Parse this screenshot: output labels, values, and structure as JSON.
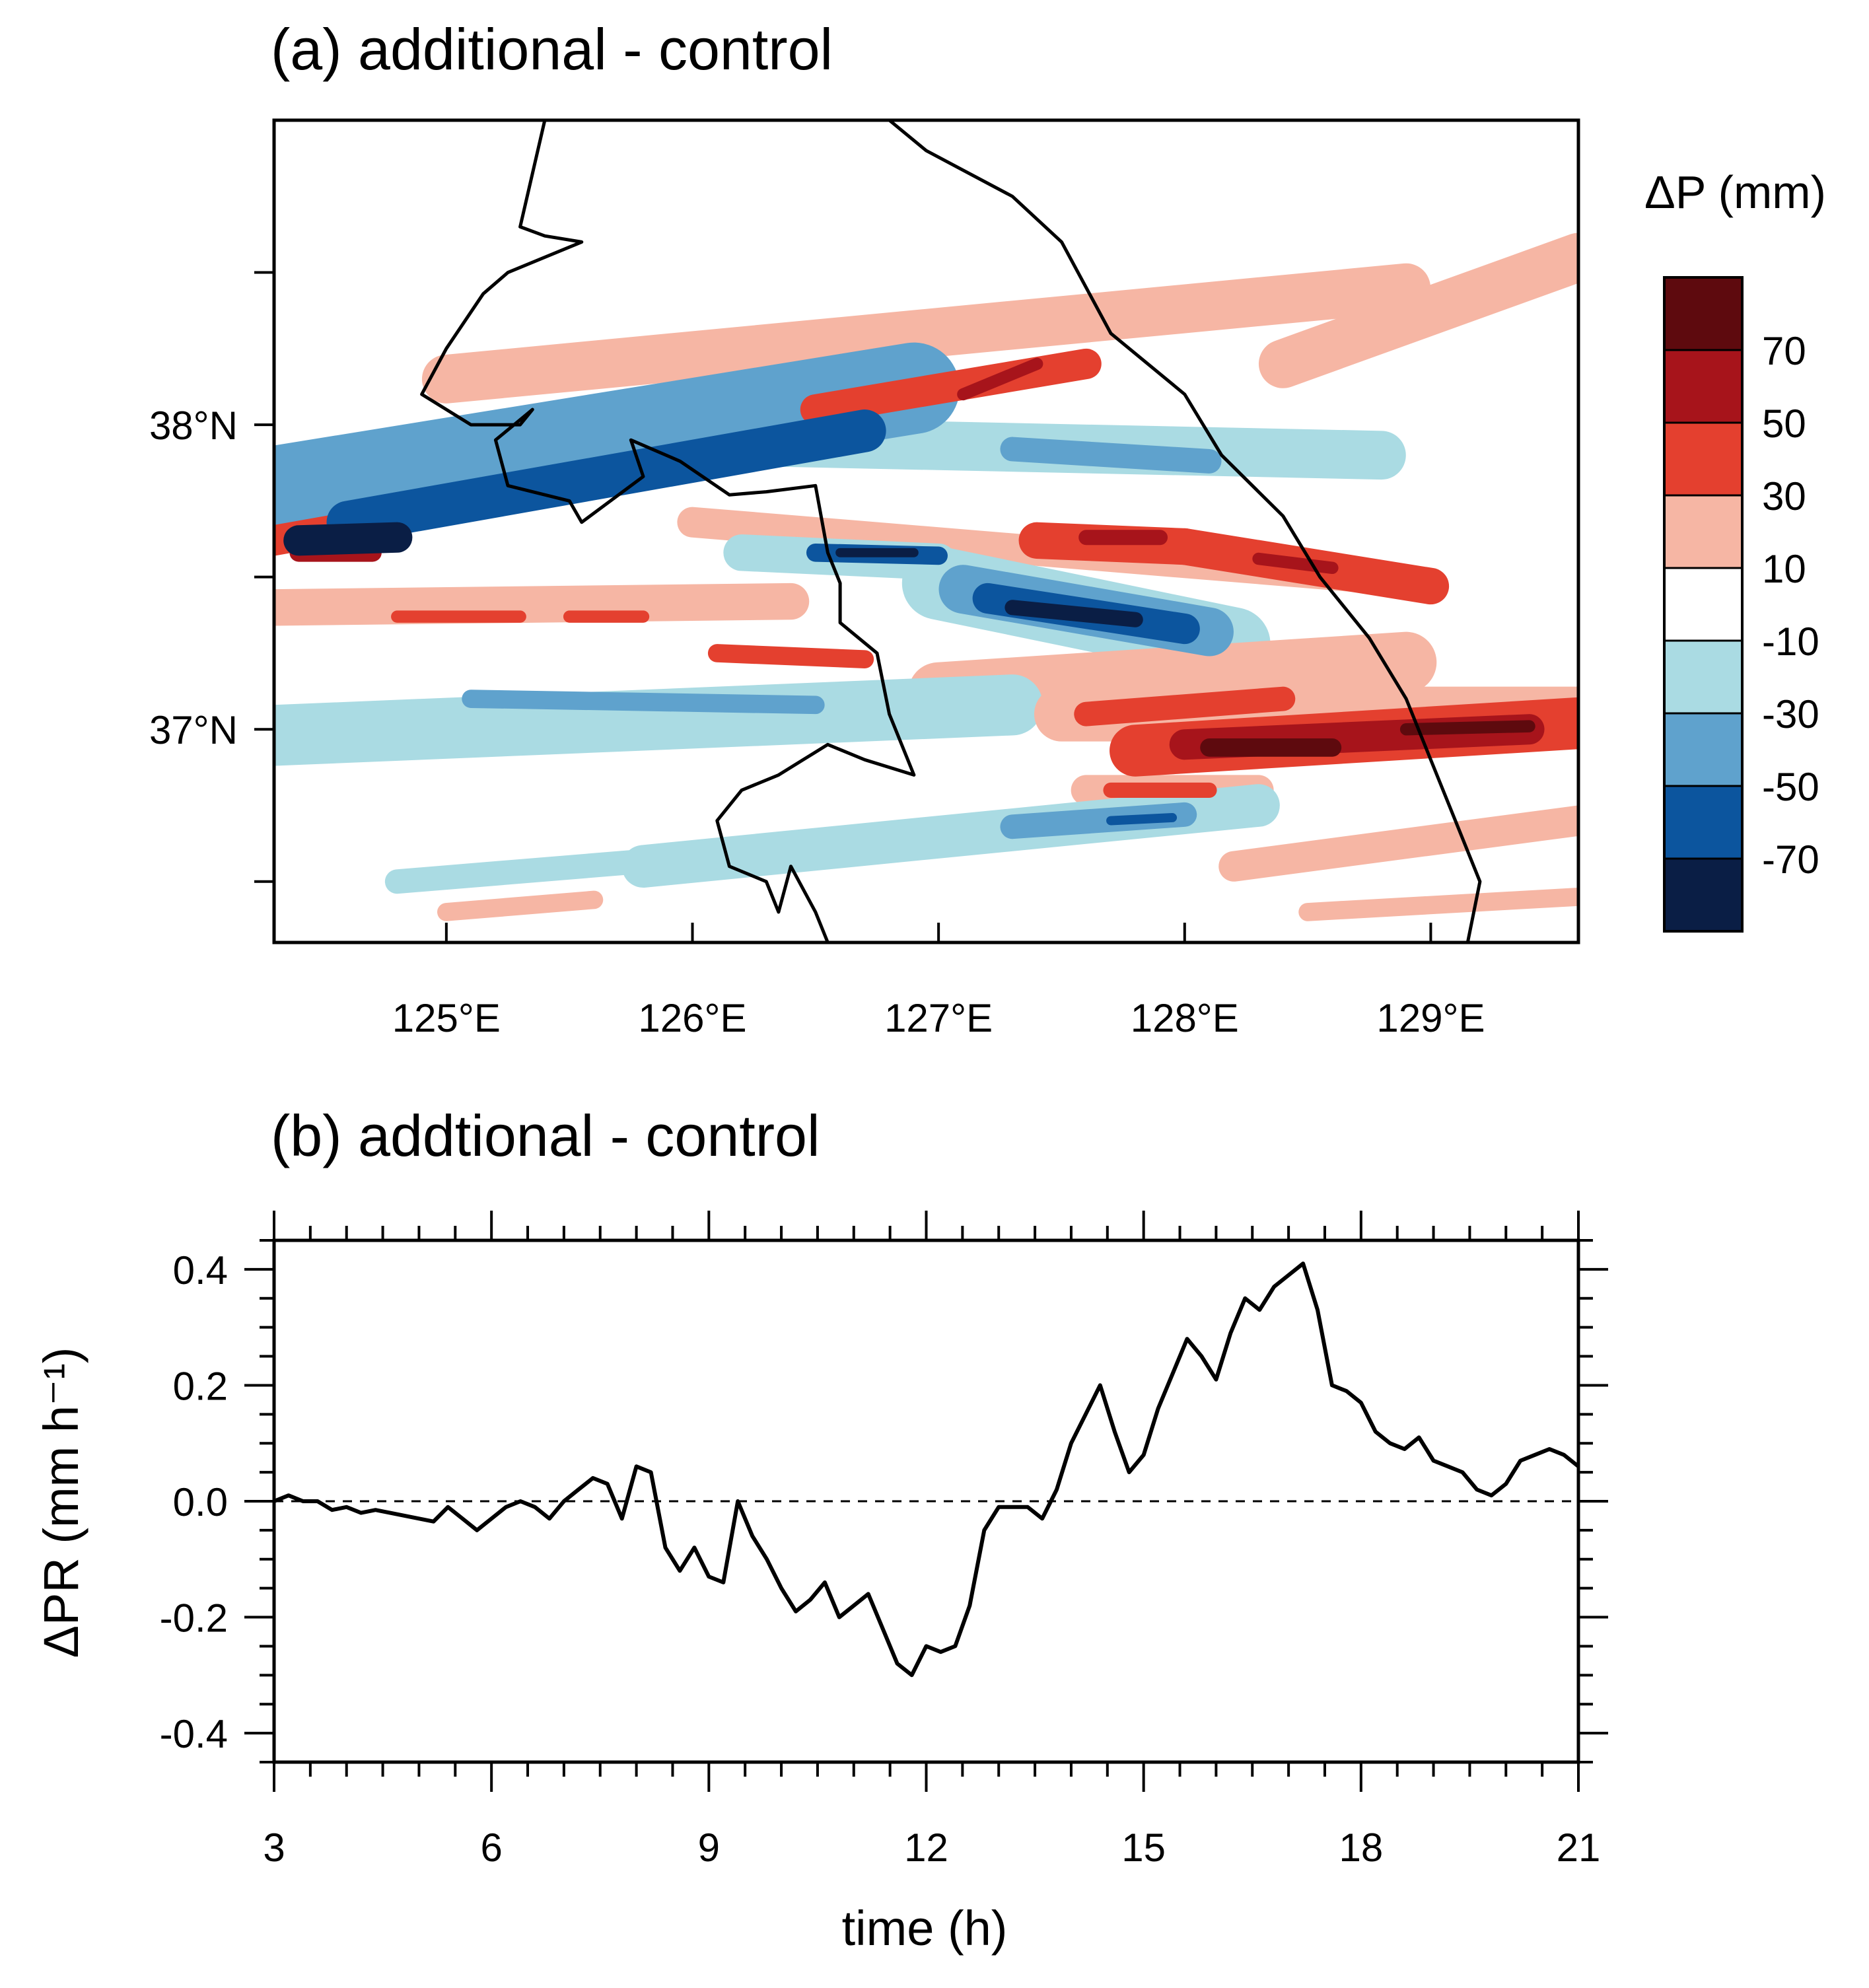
{
  "chart_data": [
    {
      "type": "heatmap",
      "panel": "a",
      "title": "(a) additional - control",
      "colorbar": {
        "title": "ΔP (mm)",
        "tick_labels": [
          "70",
          "50",
          "30",
          "10",
          "-10",
          "-30",
          "-50",
          "-70"
        ],
        "colors": [
          "#5e0a0e",
          "#a7141b",
          "#e4402f",
          "#f6b6a4",
          "#ffffff",
          "#aadbe3",
          "#5fa2cd",
          "#0c559e",
          "#0a1e45"
        ]
      },
      "x_tick_labels": [
        "125°E",
        "126°E",
        "127°E",
        "128°E",
        "129°E"
      ],
      "x_ticks": [
        125,
        126,
        127,
        128,
        129
      ],
      "y_tick_labels": [
        "38°N",
        "37°N"
      ],
      "y_ticks": [
        38,
        37
      ],
      "xlim": [
        124.3,
        129.6
      ],
      "ylim": [
        36.3,
        39.0
      ],
      "bands": [
        {
          "lon0": 124.3,
          "lat0": 37.78,
          "lon1": 126.9,
          "lat1": 38.12,
          "w": 0.15,
          "level": -2
        },
        {
          "lon0": 124.6,
          "lat0": 37.68,
          "lon1": 126.7,
          "lat1": 37.98,
          "w": 0.07,
          "level": -3
        },
        {
          "lon0": 124.3,
          "lat0": 37.62,
          "lon1": 126.6,
          "lat1": 37.95,
          "w": 0.05,
          "level": 2
        },
        {
          "lon0": 124.4,
          "lat0": 37.62,
          "lon1": 124.8,
          "lat1": 37.63,
          "w": 0.05,
          "level": -4
        },
        {
          "lon0": 124.4,
          "lat0": 37.58,
          "lon1": 124.7,
          "lat1": 37.58,
          "w": 0.03,
          "level": 3
        },
        {
          "lon0": 125.0,
          "lat0": 38.15,
          "lon1": 128.9,
          "lat1": 38.45,
          "w": 0.08,
          "level": 1
        },
        {
          "lon0": 126.5,
          "lat0": 38.05,
          "lon1": 127.6,
          "lat1": 38.2,
          "w": 0.05,
          "level": 2
        },
        {
          "lon0": 127.1,
          "lat0": 38.1,
          "lon1": 127.4,
          "lat1": 38.2,
          "w": 0.02,
          "level": 3
        },
        {
          "lon0": 125.9,
          "lat0": 37.95,
          "lon1": 128.8,
          "lat1": 37.9,
          "w": 0.08,
          "level": -1
        },
        {
          "lon0": 127.3,
          "lat0": 37.92,
          "lon1": 128.1,
          "lat1": 37.88,
          "w": 0.04,
          "level": -2
        },
        {
          "lon0": 128.4,
          "lat0": 38.2,
          "lon1": 129.6,
          "lat1": 38.55,
          "w": 0.08,
          "level": 1
        },
        {
          "lon0": 126.0,
          "lat0": 37.68,
          "lon1": 128.7,
          "lat1": 37.5,
          "w": 0.05,
          "level": 1
        },
        {
          "lon0": 127.4,
          "lat0": 37.62,
          "lon1": 128.0,
          "lat1": 37.6,
          "w": 0.06,
          "level": 2
        },
        {
          "lon0": 127.6,
          "lat0": 37.63,
          "lon1": 127.9,
          "lat1": 37.63,
          "w": 0.025,
          "level": 3
        },
        {
          "lon0": 128.0,
          "lat0": 37.6,
          "lon1": 129.0,
          "lat1": 37.47,
          "w": 0.06,
          "level": 2
        },
        {
          "lon0": 128.3,
          "lat0": 37.56,
          "lon1": 128.6,
          "lat1": 37.53,
          "w": 0.02,
          "level": 3
        },
        {
          "lon0": 126.2,
          "lat0": 37.58,
          "lon1": 127.0,
          "lat1": 37.55,
          "w": 0.06,
          "level": -1
        },
        {
          "lon0": 126.5,
          "lat0": 37.58,
          "lon1": 127.0,
          "lat1": 37.57,
          "w": 0.03,
          "level": -3
        },
        {
          "lon0": 126.6,
          "lat0": 37.58,
          "lon1": 126.9,
          "lat1": 37.58,
          "w": 0.015,
          "level": -4
        },
        {
          "lon0": 127.0,
          "lat0": 37.48,
          "lon1": 128.2,
          "lat1": 37.28,
          "w": 0.12,
          "level": -1
        },
        {
          "lon0": 127.1,
          "lat0": 37.46,
          "lon1": 128.1,
          "lat1": 37.32,
          "w": 0.08,
          "level": -2
        },
        {
          "lon0": 127.2,
          "lat0": 37.43,
          "lon1": 128.0,
          "lat1": 37.33,
          "w": 0.05,
          "level": -3
        },
        {
          "lon0": 127.3,
          "lat0": 37.4,
          "lon1": 127.8,
          "lat1": 37.36,
          "w": 0.025,
          "level": -4
        },
        {
          "lon0": 124.3,
          "lat0": 37.4,
          "lon1": 126.4,
          "lat1": 37.42,
          "w": 0.06,
          "level": 1
        },
        {
          "lon0": 124.8,
          "lat0": 37.37,
          "lon1": 125.3,
          "lat1": 37.37,
          "w": 0.02,
          "level": 2
        },
        {
          "lon0": 125.5,
          "lat0": 37.37,
          "lon1": 125.8,
          "lat1": 37.37,
          "w": 0.02,
          "level": 2
        },
        {
          "lon0": 126.1,
          "lat0": 37.25,
          "lon1": 126.7,
          "lat1": 37.23,
          "w": 0.03,
          "level": 2
        },
        {
          "lon0": 127.0,
          "lat0": 37.12,
          "lon1": 128.9,
          "lat1": 37.22,
          "w": 0.1,
          "level": 1
        },
        {
          "lon0": 124.3,
          "lat0": 36.98,
          "lon1": 127.3,
          "lat1": 37.08,
          "w": 0.1,
          "level": -1
        },
        {
          "lon0": 125.1,
          "lat0": 37.1,
          "lon1": 126.5,
          "lat1": 37.08,
          "w": 0.03,
          "level": -2
        },
        {
          "lon0": 127.5,
          "lat0": 37.05,
          "lon1": 129.6,
          "lat1": 37.05,
          "w": 0.09,
          "level": 1
        },
        {
          "lon0": 127.6,
          "lat0": 37.05,
          "lon1": 128.4,
          "lat1": 37.1,
          "w": 0.04,
          "level": 2
        },
        {
          "lon0": 127.8,
          "lat0": 36.93,
          "lon1": 129.6,
          "lat1": 37.02,
          "w": 0.085,
          "level": 2
        },
        {
          "lon0": 128.0,
          "lat0": 36.95,
          "lon1": 129.4,
          "lat1": 37.0,
          "w": 0.05,
          "level": 3
        },
        {
          "lon0": 128.1,
          "lat0": 36.94,
          "lon1": 128.6,
          "lat1": 36.94,
          "w": 0.03,
          "level": 4
        },
        {
          "lon0": 128.9,
          "lat0": 37.0,
          "lon1": 129.4,
          "lat1": 37.01,
          "w": 0.02,
          "level": 4
        },
        {
          "lon0": 127.6,
          "lat0": 36.8,
          "lon1": 128.3,
          "lat1": 36.8,
          "w": 0.05,
          "level": 1
        },
        {
          "lon0": 127.7,
          "lat0": 36.8,
          "lon1": 128.1,
          "lat1": 36.8,
          "w": 0.025,
          "level": 2
        },
        {
          "lon0": 125.8,
          "lat0": 36.55,
          "lon1": 128.3,
          "lat1": 36.75,
          "w": 0.07,
          "level": -1
        },
        {
          "lon0": 127.3,
          "lat0": 36.68,
          "lon1": 128.0,
          "lat1": 36.72,
          "w": 0.04,
          "level": -2
        },
        {
          "lon0": 127.7,
          "lat0": 36.7,
          "lon1": 127.95,
          "lat1": 36.71,
          "w": 0.015,
          "level": -3
        },
        {
          "lon0": 124.8,
          "lat0": 36.5,
          "lon1": 126.0,
          "lat1": 36.58,
          "w": 0.04,
          "level": -1
        },
        {
          "lon0": 125.0,
          "lat0": 36.4,
          "lon1": 125.6,
          "lat1": 36.44,
          "w": 0.03,
          "level": 1
        },
        {
          "lon0": 128.2,
          "lat0": 36.55,
          "lon1": 129.6,
          "lat1": 36.7,
          "w": 0.05,
          "level": 1
        },
        {
          "lon0": 128.5,
          "lat0": 36.4,
          "lon1": 129.6,
          "lat1": 36.45,
          "w": 0.03,
          "level": 1
        }
      ],
      "coastline": [
        [
          125.4,
          39.0
        ],
        [
          125.3,
          38.65
        ],
        [
          125.4,
          38.62
        ],
        [
          125.55,
          38.6
        ],
        [
          125.25,
          38.5
        ],
        [
          125.15,
          38.43
        ],
        [
          125.0,
          38.25
        ],
        [
          124.9,
          38.1
        ],
        [
          125.1,
          38.0
        ],
        [
          125.3,
          38.0
        ],
        [
          125.35,
          38.05
        ],
        [
          125.2,
          37.95
        ],
        [
          125.25,
          37.8
        ],
        [
          125.5,
          37.75
        ],
        [
          125.55,
          37.68
        ],
        [
          125.8,
          37.83
        ],
        [
          125.75,
          37.95
        ],
        [
          125.95,
          37.88
        ],
        [
          126.15,
          37.77
        ],
        [
          126.3,
          37.78
        ],
        [
          126.5,
          37.8
        ],
        [
          126.55,
          37.58
        ],
        [
          126.6,
          37.48
        ],
        [
          126.6,
          37.35
        ],
        [
          126.75,
          37.25
        ],
        [
          126.8,
          37.05
        ],
        [
          126.9,
          36.85
        ],
        [
          126.7,
          36.9
        ],
        [
          126.55,
          36.95
        ],
        [
          126.45,
          36.9
        ],
        [
          126.35,
          36.85
        ],
        [
          126.2,
          36.8
        ],
        [
          126.1,
          36.7
        ],
        [
          126.15,
          36.55
        ],
        [
          126.3,
          36.5
        ],
        [
          126.35,
          36.4
        ],
        [
          126.4,
          36.55
        ],
        [
          126.5,
          36.4
        ],
        [
          126.55,
          36.3
        ]
      ],
      "east_coast": [
        [
          126.8,
          39.0
        ],
        [
          126.95,
          38.9
        ],
        [
          127.3,
          38.75
        ],
        [
          127.5,
          38.6
        ],
        [
          127.6,
          38.45
        ],
        [
          127.7,
          38.3
        ],
        [
          128.0,
          38.1
        ],
        [
          128.15,
          37.9
        ],
        [
          128.4,
          37.7
        ],
        [
          128.55,
          37.5
        ],
        [
          128.75,
          37.3
        ],
        [
          128.9,
          37.1
        ],
        [
          129.0,
          36.9
        ],
        [
          129.1,
          36.7
        ],
        [
          129.2,
          36.5
        ],
        [
          129.15,
          36.3
        ]
      ]
    },
    {
      "type": "line",
      "panel": "b",
      "title": "(b) addtional - control",
      "xlabel": "time (h)",
      "ylabel": "ΔPR (mm h⁻¹)",
      "xlim": [
        3,
        21
      ],
      "ylim": [
        -0.45,
        0.45
      ],
      "x_ticks": [
        3,
        6,
        9,
        12,
        15,
        18,
        21
      ],
      "y_ticks": [
        -0.4,
        -0.2,
        0.0,
        0.2,
        0.4
      ],
      "y_tick_labels": [
        "-0.4",
        "-0.2",
        "0.0",
        "0.2",
        "0.4"
      ],
      "reference_line": 0.0,
      "series": [
        {
          "x": [
            3.0,
            3.2,
            3.4,
            3.6,
            3.8,
            4.0,
            4.2,
            4.4,
            4.6,
            4.8,
            5.0,
            5.2,
            5.4,
            5.6,
            5.8,
            6.0,
            6.2,
            6.4,
            6.6,
            6.8,
            7.0,
            7.2,
            7.4,
            7.6,
            7.8,
            8.0,
            8.2,
            8.4,
            8.6,
            8.8,
            9.0,
            9.2,
            9.4,
            9.6,
            9.8,
            10.0,
            10.2,
            10.4,
            10.6,
            10.8,
            11.0,
            11.2,
            11.4,
            11.6,
            11.8,
            12.0,
            12.2,
            12.4,
            12.6,
            12.8,
            13.0,
            13.2,
            13.4,
            13.6,
            13.8,
            14.0,
            14.2,
            14.4,
            14.6,
            14.8,
            15.0,
            15.2,
            15.4,
            15.6,
            15.8,
            16.0,
            16.2,
            16.4,
            16.6,
            16.8,
            17.0,
            17.2,
            17.4,
            17.6,
            17.8,
            18.0,
            18.2,
            18.4,
            18.6,
            18.8,
            19.0,
            19.2,
            19.4,
            19.6,
            19.8,
            20.0,
            20.2,
            20.4,
            20.6,
            20.8,
            21.0
          ],
          "y": [
            0.0,
            0.01,
            0.0,
            0.0,
            -0.015,
            -0.01,
            -0.02,
            -0.015,
            -0.02,
            -0.025,
            -0.03,
            -0.035,
            -0.01,
            -0.03,
            -0.05,
            -0.03,
            -0.01,
            0.0,
            -0.01,
            -0.03,
            0.0,
            0.02,
            0.04,
            0.03,
            -0.03,
            0.06,
            0.05,
            -0.08,
            -0.12,
            -0.08,
            -0.13,
            -0.14,
            0.0,
            -0.06,
            -0.1,
            -0.15,
            -0.19,
            -0.17,
            -0.14,
            -0.2,
            -0.18,
            -0.16,
            -0.22,
            -0.28,
            -0.3,
            -0.25,
            -0.26,
            -0.25,
            -0.18,
            -0.05,
            -0.01,
            -0.01,
            -0.01,
            -0.03,
            0.02,
            0.1,
            0.15,
            0.2,
            0.12,
            0.05,
            0.08,
            0.16,
            0.22,
            0.28,
            0.25,
            0.21,
            0.29,
            0.35,
            0.33,
            0.37,
            0.39,
            0.41,
            0.33,
            0.2,
            0.19,
            0.17,
            0.12,
            0.1,
            0.09,
            0.11,
            0.07,
            0.06,
            0.05,
            0.02,
            0.01,
            0.03,
            0.07,
            0.08,
            0.09,
            0.08,
            0.06
          ]
        }
      ]
    }
  ]
}
